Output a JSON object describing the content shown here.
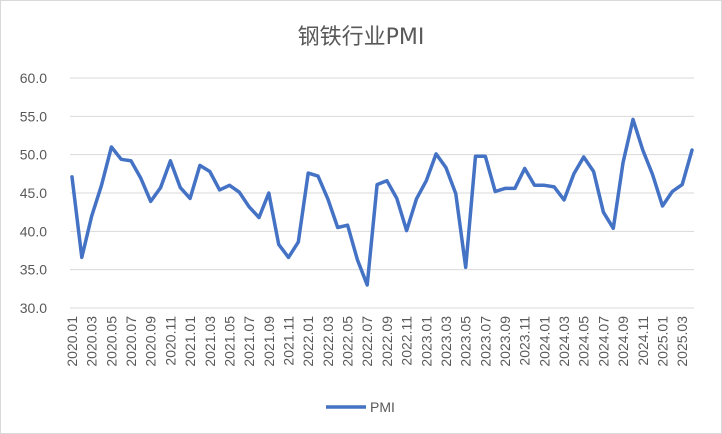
{
  "chart_data": {
    "type": "line",
    "title": "钢铁行业PMI",
    "xlabel": "",
    "ylabel": "",
    "ylim": [
      30.0,
      60.0
    ],
    "yticks": [
      "30.0",
      "35.0",
      "40.0",
      "45.0",
      "50.0",
      "55.0",
      "60.0"
    ],
    "grid": true,
    "legend_position": "bottom",
    "line_color": "#4472C4",
    "categories": [
      "2020.01",
      "2020.02",
      "2020.03",
      "2020.04",
      "2020.05",
      "2020.06",
      "2020.07",
      "2020.08",
      "2020.09",
      "2020.10",
      "2020.11",
      "2020.12",
      "2021.01",
      "2021.02",
      "2021.03",
      "2021.04",
      "2021.05",
      "2021.06",
      "2021.07",
      "2021.08",
      "2021.09",
      "2021.10",
      "2021.11",
      "2021.12",
      "2022.01",
      "2022.02",
      "2022.03",
      "2022.04",
      "2022.05",
      "2022.06",
      "2022.07",
      "2022.08",
      "2022.09",
      "2022.10",
      "2022.11",
      "2022.12",
      "2023.01",
      "2023.02",
      "2023.03",
      "2023.04",
      "2023.05",
      "2023.06",
      "2023.07",
      "2023.08",
      "2023.09",
      "2023.10",
      "2023.11",
      "2023.12",
      "2024.01",
      "2024.02",
      "2024.03",
      "2024.04",
      "2024.05",
      "2024.06",
      "2024.07",
      "2024.08",
      "2024.09",
      "2024.10",
      "2024.11",
      "2024.12",
      "2025.01",
      "2025.02",
      "2025.03",
      "2025.04"
    ],
    "tick_labels": [
      "2020.01",
      "2020.03",
      "2020.05",
      "2020.07",
      "2020.09",
      "2020.11",
      "2021.01",
      "2021.03",
      "2021.05",
      "2021.07",
      "2021.09",
      "2021.11",
      "2022.01",
      "2022.03",
      "2022.05",
      "2022.07",
      "2022.09",
      "2022.11",
      "2023.01",
      "2023.03",
      "2023.05",
      "2023.07",
      "2023.09",
      "2023.11",
      "2024.01",
      "2024.03",
      "2024.05",
      "2024.07",
      "2024.09",
      "2024.11",
      "2025.01",
      "2025.03"
    ],
    "series": [
      {
        "name": "PMI",
        "values": [
          47.1,
          36.6,
          42.0,
          46.0,
          51.0,
          49.4,
          49.2,
          46.9,
          43.9,
          45.7,
          49.2,
          45.7,
          44.3,
          48.6,
          47.8,
          45.4,
          46.0,
          45.1,
          43.2,
          41.8,
          45.0,
          38.3,
          36.6,
          38.6,
          47.6,
          47.2,
          44.2,
          40.5,
          40.8,
          36.3,
          33.0,
          46.1,
          46.6,
          44.3,
          40.1,
          44.2,
          46.6,
          50.1,
          48.3,
          44.9,
          35.3,
          49.8,
          49.8,
          45.2,
          45.6,
          45.6,
          48.2,
          46.0,
          46.0,
          45.8,
          44.1,
          47.5,
          49.7,
          47.8,
          42.5,
          40.4,
          49.0,
          54.6,
          50.6,
          47.4,
          43.3,
          45.2,
          46.1,
          50.6
        ]
      }
    ]
  }
}
